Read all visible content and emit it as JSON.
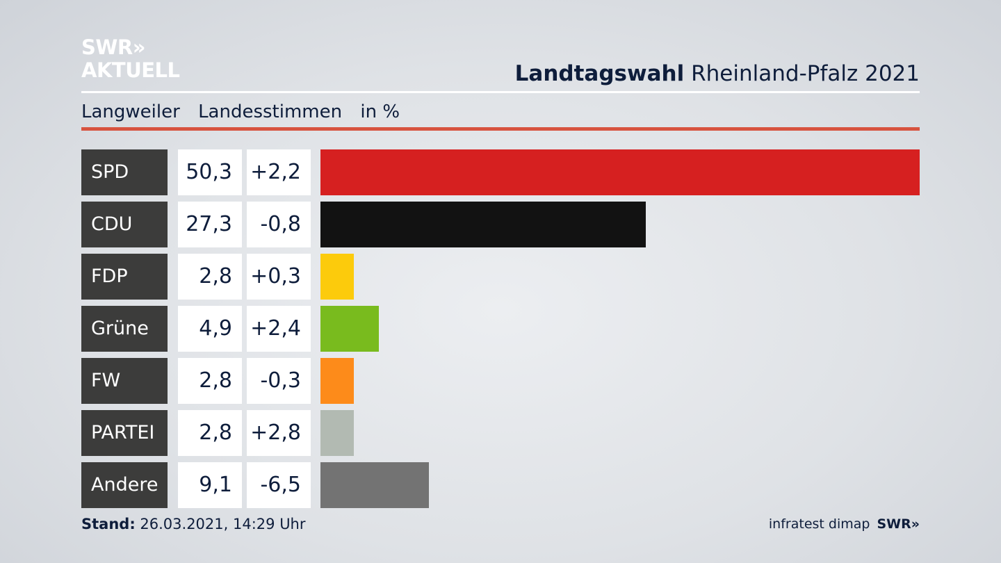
{
  "logo": {
    "line1": "SWR»",
    "line2": "AKTUELL"
  },
  "header": {
    "title_bold": "Landtagswahl",
    "title_rest": "Rheinland-Pfalz 2021"
  },
  "subheader": {
    "place": "Langweiler",
    "kind": "Landesstimmen",
    "unit": "in %"
  },
  "footer": {
    "stand_label": "Stand:",
    "stand_value": "26.03.2021, 14:29 Uhr",
    "source": "infratest dimap",
    "brand": "SWR»"
  },
  "chart_data": {
    "type": "bar",
    "orientation": "horizontal",
    "categories": [
      "SPD",
      "CDU",
      "FDP",
      "Grüne",
      "FW",
      "PARTEI",
      "Andere"
    ],
    "values": [
      50.3,
      27.3,
      2.8,
      4.9,
      2.8,
      2.8,
      9.1
    ],
    "values_label": [
      "50,3",
      "27,3",
      "2,8",
      "4,9",
      "2,8",
      "2,8",
      "9,1"
    ],
    "diffs_label": [
      "+2,2",
      "-0,8",
      "+0,3",
      "+2,4",
      "-0,3",
      "+2,8",
      "-6,5"
    ],
    "colors": [
      "#d62020",
      "#121212",
      "#fccb0c",
      "#79bb1e",
      "#fd8b1a",
      "#b2bab2",
      "#737373"
    ],
    "xlim": [
      0,
      50.3
    ],
    "grid": false,
    "legend": "none"
  }
}
